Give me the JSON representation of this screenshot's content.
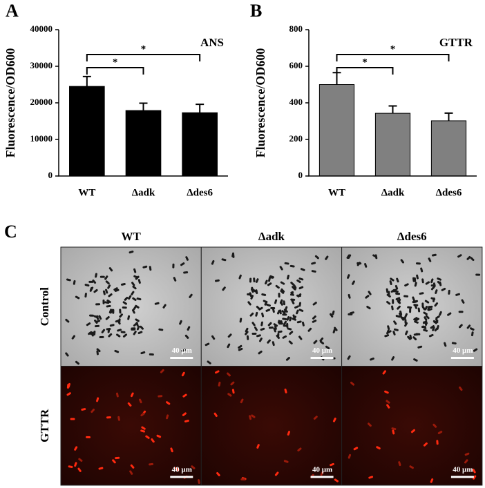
{
  "chart_data": [
    {
      "type": "bar",
      "panel": "A",
      "label": "ANS",
      "y_label": "Fluorescence/OD600",
      "categories": [
        "WT",
        "Δadk",
        "Δdes6"
      ],
      "values": [
        24500,
        17900,
        17300
      ],
      "errors": [
        2700,
        2000,
        2300
      ],
      "color": "#000000",
      "ylim": [
        0,
        40000
      ],
      "yticks": [
        0,
        10000,
        20000,
        30000,
        40000
      ],
      "annotations": [
        "*",
        "*"
      ]
    },
    {
      "type": "bar",
      "panel": "B",
      "label": "GTTR",
      "y_label": "Fluorescence/OD600",
      "categories": [
        "WT",
        "Δadk",
        "Δdes6"
      ],
      "values": [
        500,
        343,
        302
      ],
      "errors": [
        65,
        40,
        42
      ],
      "color": "#808080",
      "ylim": [
        0,
        800
      ],
      "yticks": [
        0,
        200,
        400,
        600,
        800
      ],
      "annotations": [
        "*",
        "*"
      ]
    }
  ],
  "panel_c": {
    "panel": "C",
    "columns": [
      "WT",
      "Δadk",
      "Δdes6"
    ],
    "rows": [
      "Control",
      "GTTR"
    ],
    "scale_bar": "40 µm"
  }
}
